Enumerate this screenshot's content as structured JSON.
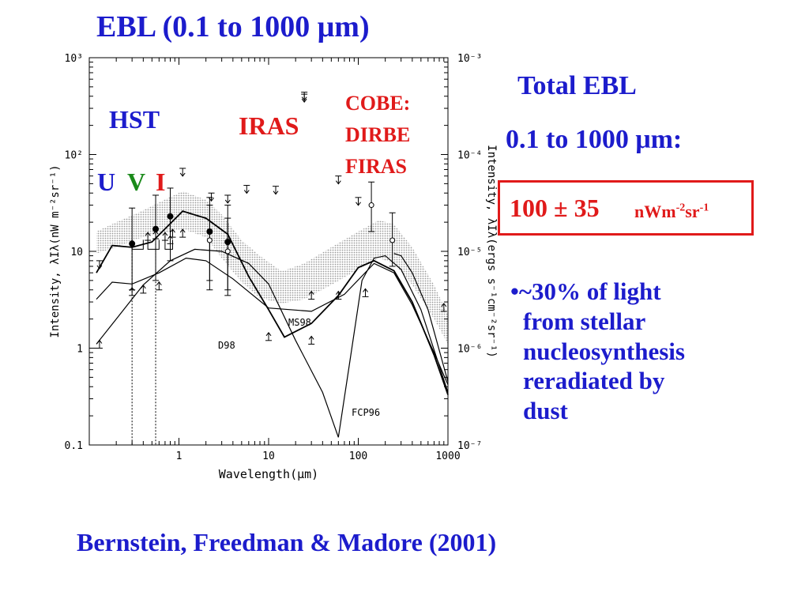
{
  "title": "EBL  (0.1 to 1000 μm)",
  "side_panel": {
    "heading": "Total EBL",
    "range": "0.1 to 1000 μm:",
    "value_main": "100 ± 35",
    "value_units_pre": "nWm",
    "value_units_exp1": "-2",
    "value_units_mid": "sr",
    "value_units_exp2": "-1",
    "bullet_lines": [
      "•~30% of light",
      "from stellar",
      "nucleosynthesis",
      "reradiated by",
      "dust"
    ]
  },
  "citation": "Bernstein, Freedman & Madore (2001)",
  "colors": {
    "blue_text": "#1c1ccc",
    "red_text": "#e01a1a",
    "green_text": "#1a8a1a",
    "band_fill": "#c8c8c8"
  },
  "chart_data": {
    "type": "line",
    "xlabel": "Wavelength(μm)",
    "ylabel_left": "Intensity, λIλ(nW m⁻²sr⁻¹)",
    "ylabel_right": "Intensity, λIλ(ergs s⁻¹cm⁻²sr⁻¹)",
    "xscale": "log",
    "yscale": "log",
    "xlim": [
      0.1,
      1000
    ],
    "ylim": [
      0.1,
      1000
    ],
    "x_ticks": [
      {
        "v": 1,
        "label": "1"
      },
      {
        "v": 10,
        "label": "10"
      },
      {
        "v": 100,
        "label": "100"
      },
      {
        "v": 1000,
        "label": "1000"
      }
    ],
    "y_ticks_left": [
      {
        "v": 0.1,
        "label": "0.1"
      },
      {
        "v": 1,
        "label": "1"
      },
      {
        "v": 10,
        "label": "10"
      },
      {
        "v": 100,
        "label": "10²"
      },
      {
        "v": 1000,
        "label": "10³"
      }
    ],
    "y_ticks_right": [
      {
        "v": 0.1,
        "label": "10⁻⁷"
      },
      {
        "v": 1,
        "label": "10⁻⁶"
      },
      {
        "v": 10,
        "label": "10⁻⁵"
      },
      {
        "v": 100,
        "label": "10⁻⁴"
      },
      {
        "v": 1000,
        "label": "10⁻³"
      }
    ],
    "annotations": {
      "hst": "HST",
      "iras": "IRAS",
      "cobe": [
        "COBE:",
        "DIRBE",
        "FIRAS"
      ],
      "u": "U",
      "v": "V",
      "i": "I"
    },
    "model_labels": [
      "MS98",
      "D98",
      "FCP96"
    ],
    "series": [
      {
        "name": "MS98",
        "points": [
          [
            0.12,
            3.2
          ],
          [
            0.18,
            4.8
          ],
          [
            0.3,
            4.6
          ],
          [
            0.6,
            6.0
          ],
          [
            1.2,
            8.5
          ],
          [
            2,
            8.0
          ],
          [
            4,
            5.2
          ],
          [
            10,
            2.6
          ],
          [
            30,
            2.4
          ],
          [
            70,
            3.6
          ],
          [
            150,
            7.5
          ],
          [
            250,
            6.0
          ],
          [
            400,
            2.8
          ],
          [
            700,
            0.9
          ],
          [
            1000,
            0.42
          ]
        ]
      },
      {
        "name": "D98",
        "points": [
          [
            0.12,
            6.0
          ],
          [
            0.18,
            11.5
          ],
          [
            0.3,
            11.0
          ],
          [
            0.5,
            12.5
          ],
          [
            1.1,
            26.0
          ],
          [
            2,
            22.0
          ],
          [
            3.5,
            15.0
          ],
          [
            6,
            5.5
          ],
          [
            10,
            2.5
          ],
          [
            15,
            1.3
          ],
          [
            30,
            1.8
          ],
          [
            60,
            3.5
          ],
          [
            100,
            6.8
          ],
          [
            150,
            8.0
          ],
          [
            250,
            6.3
          ],
          [
            400,
            3.0
          ],
          [
            700,
            0.85
          ],
          [
            1000,
            0.33
          ]
        ]
      },
      {
        "name": "FCP96",
        "points": [
          [
            0.12,
            1.1
          ],
          [
            0.2,
            2.0
          ],
          [
            0.4,
            4.5
          ],
          [
            0.8,
            8.0
          ],
          [
            1.5,
            10.5
          ],
          [
            3,
            10.0
          ],
          [
            6,
            7.5
          ],
          [
            10,
            4.6
          ],
          [
            20,
            1.2
          ],
          [
            40,
            0.35
          ],
          [
            60,
            0.12
          ],
          [
            80,
            0.7
          ],
          [
            110,
            5.0
          ],
          [
            150,
            8.5
          ],
          [
            200,
            9.0
          ],
          [
            300,
            6.5
          ],
          [
            500,
            2.5
          ],
          [
            1000,
            0.35
          ]
        ]
      },
      {
        "name": "",
        "points": [
          [
            250,
            9.5
          ],
          [
            300,
            9.0
          ],
          [
            400,
            6.0
          ],
          [
            600,
            2.5
          ],
          [
            1000,
            0.45
          ]
        ]
      }
    ],
    "band": {
      "upper": [
        [
          0.12,
          16
        ],
        [
          0.2,
          20
        ],
        [
          0.35,
          25
        ],
        [
          0.6,
          32
        ],
        [
          1.1,
          42
        ],
        [
          2,
          34
        ],
        [
          3,
          24
        ],
        [
          5,
          13
        ],
        [
          8,
          9
        ],
        [
          14,
          6.2
        ],
        [
          25,
          7.5
        ],
        [
          50,
          11
        ],
        [
          100,
          16
        ],
        [
          170,
          21
        ],
        [
          250,
          19
        ],
        [
          400,
          11
        ],
        [
          700,
          4.5
        ],
        [
          1000,
          2.2
        ]
      ],
      "lower": [
        [
          0.12,
          9.5
        ],
        [
          0.2,
          11
        ],
        [
          0.35,
          13.5
        ],
        [
          0.6,
          15
        ],
        [
          1.1,
          17
        ],
        [
          2,
          14
        ],
        [
          3,
          8.5
        ],
        [
          5,
          4.8
        ],
        [
          8,
          3.3
        ],
        [
          14,
          2.9
        ],
        [
          25,
          3.2
        ],
        [
          50,
          4.5
        ],
        [
          100,
          6.5
        ],
        [
          170,
          8.5
        ],
        [
          250,
          7.5
        ],
        [
          400,
          4.5
        ],
        [
          700,
          2.0
        ],
        [
          1000,
          1.1
        ]
      ]
    },
    "measurements": [
      {
        "x": 0.3,
        "y": 12,
        "lo": 4,
        "hi": 28,
        "marker": "filled"
      },
      {
        "x": 0.55,
        "y": 17,
        "lo": 5,
        "hi": 38,
        "marker": "filled"
      },
      {
        "x": 0.8,
        "y": 23,
        "lo": 8,
        "hi": 45,
        "marker": "filled"
      },
      {
        "x": 2.2,
        "y": 16,
        "lo": 4,
        "hi": 36,
        "marker": "filled"
      },
      {
        "x": 3.5,
        "y": 12.5,
        "lo": 3.5,
        "hi": 30,
        "marker": "filled"
      },
      {
        "x": 2.2,
        "y": 13,
        "lo": 5,
        "hi": 30,
        "marker": "open"
      },
      {
        "x": 3.5,
        "y": 10,
        "lo": 4,
        "hi": 22,
        "marker": "open"
      },
      {
        "x": 140,
        "y": 30,
        "lo": 16,
        "hi": 52,
        "marker": "open"
      },
      {
        "x": 240,
        "y": 13,
        "lo": 7,
        "hi": 25,
        "marker": "open"
      }
    ],
    "upper_limits": [
      [
        0.13,
        8
      ],
      [
        1.1,
        72
      ],
      [
        2.3,
        40
      ],
      [
        3.5,
        38
      ],
      [
        5.7,
        48
      ],
      [
        12,
        47
      ],
      [
        25,
        420
      ],
      [
        25,
        440
      ],
      [
        60,
        60
      ],
      [
        100,
        36
      ]
    ],
    "lower_limits": [
      [
        0.13,
        1
      ],
      [
        0.3,
        3.5
      ],
      [
        0.4,
        3.7
      ],
      [
        0.45,
        13
      ],
      [
        0.55,
        13.5
      ],
      [
        0.7,
        13
      ],
      [
        0.8,
        12
      ],
      [
        0.85,
        14
      ],
      [
        1.1,
        14
      ],
      [
        0.6,
        4
      ],
      [
        10,
        1.2
      ],
      [
        30,
        1.1
      ],
      [
        30,
        3.2
      ],
      [
        60,
        3.2
      ],
      [
        120,
        3.4
      ],
      [
        900,
        2.4
      ]
    ],
    "vertical_dotted": [
      0.3,
      0.55
    ],
    "hst_brackets": [
      [
        0.3,
        0.4
      ],
      [
        0.45,
        0.6
      ],
      [
        0.7,
        0.85
      ]
    ]
  }
}
